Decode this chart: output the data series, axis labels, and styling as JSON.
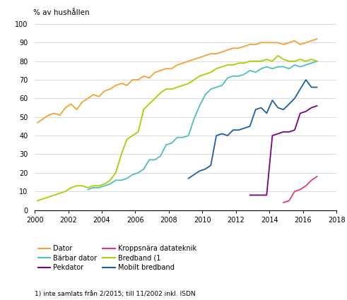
{
  "ylabel": "% av hushållen",
  "footnote": "1) inte samlats från 2/2015; till 11/2002 inkl. ISDN",
  "xlim": [
    2000,
    2018
  ],
  "ylim": [
    0,
    100
  ],
  "xticks": [
    2000,
    2002,
    2004,
    2006,
    2008,
    2010,
    2012,
    2014,
    2016,
    2018
  ],
  "yticks": [
    0,
    10,
    20,
    30,
    40,
    50,
    60,
    70,
    80,
    90,
    100
  ],
  "series": [
    {
      "name": "Dator",
      "color": "#F5A033",
      "x": [
        2000.17,
        2000.5,
        2000.83,
        2001.17,
        2001.5,
        2001.83,
        2002.17,
        2002.5,
        2002.83,
        2003.17,
        2003.5,
        2003.83,
        2004.17,
        2004.5,
        2004.83,
        2005.17,
        2005.5,
        2005.83,
        2006.17,
        2006.5,
        2006.83,
        2007.17,
        2007.5,
        2007.83,
        2008.17,
        2008.5,
        2008.83,
        2009.17,
        2009.5,
        2009.83,
        2010.17,
        2010.5,
        2010.83,
        2011.17,
        2011.5,
        2011.83,
        2012.17,
        2012.5,
        2012.83,
        2013.17,
        2013.5,
        2013.83,
        2014.17,
        2014.5,
        2014.83,
        2015.17,
        2015.5,
        2015.83,
        2016.17,
        2016.5,
        2016.83
      ],
      "y": [
        47,
        49,
        51,
        52,
        51,
        55,
        57,
        54,
        58,
        60,
        62,
        61,
        64,
        65,
        67,
        68,
        67,
        70,
        70,
        72,
        71,
        74,
        75,
        76,
        76,
        78,
        79,
        80,
        81,
        82,
        83,
        84,
        84,
        85,
        86,
        87,
        87,
        88,
        89,
        89,
        90,
        90,
        90,
        90,
        89,
        90,
        91,
        89,
        90,
        91,
        92
      ]
    },
    {
      "name": "Bärbar dator",
      "color": "#4BBFBF",
      "x": [
        2003.17,
        2003.5,
        2003.83,
        2004.17,
        2004.5,
        2004.83,
        2005.17,
        2005.5,
        2005.83,
        2006.17,
        2006.5,
        2006.83,
        2007.17,
        2007.5,
        2007.83,
        2008.17,
        2008.5,
        2008.83,
        2009.17,
        2009.5,
        2009.83,
        2010.17,
        2010.5,
        2010.83,
        2011.17,
        2011.5,
        2011.83,
        2012.17,
        2012.5,
        2012.83,
        2013.17,
        2013.5,
        2013.83,
        2014.17,
        2014.5,
        2014.83,
        2015.17,
        2015.5,
        2015.83,
        2016.17,
        2016.5,
        2016.83
      ],
      "y": [
        11,
        12,
        12,
        13,
        14,
        16,
        16,
        17,
        19,
        20,
        22,
        27,
        27,
        29,
        35,
        36,
        39,
        39,
        40,
        49,
        56,
        62,
        65,
        66,
        67,
        71,
        72,
        72,
        73,
        75,
        74,
        76,
        77,
        76,
        77,
        77,
        76,
        78,
        77,
        78,
        79,
        80
      ]
    },
    {
      "name": "Pekdator",
      "color": "#7B0080",
      "x": [
        2012.83,
        2013.17,
        2013.5,
        2013.83,
        2014.17,
        2014.5,
        2014.83,
        2015.17,
        2015.5,
        2015.83,
        2016.17,
        2016.5,
        2016.83
      ],
      "y": [
        8,
        8,
        8,
        8,
        40,
        41,
        42,
        42,
        43,
        52,
        53,
        55,
        56
      ]
    },
    {
      "name": "Kroppsnära datateknik",
      "color": "#E8347A",
      "x": [
        2014.83,
        2015.17,
        2015.5,
        2015.83,
        2016.17,
        2016.5,
        2016.83
      ],
      "y": [
        4,
        5,
        10,
        11,
        13,
        16,
        18
      ]
    },
    {
      "name": "Bredband (1",
      "color": "#AACC00",
      "x": [
        2000.17,
        2000.5,
        2000.83,
        2001.17,
        2001.5,
        2001.83,
        2002.17,
        2002.5,
        2002.83,
        2003.17,
        2003.5,
        2003.83,
        2004.17,
        2004.5,
        2004.83,
        2005.17,
        2005.5,
        2005.83,
        2006.17,
        2006.5,
        2006.83,
        2007.17,
        2007.5,
        2007.83,
        2008.17,
        2008.5,
        2008.83,
        2009.17,
        2009.5,
        2009.83,
        2010.17,
        2010.5,
        2010.83,
        2011.17,
        2011.5,
        2011.83,
        2012.17,
        2012.5,
        2012.83,
        2013.17,
        2013.5,
        2013.83,
        2014.17,
        2014.5,
        2014.83,
        2015.17,
        2015.5,
        2015.83,
        2016.17,
        2016.5,
        2016.83
      ],
      "y": [
        5,
        6,
        7,
        8,
        9,
        10,
        12,
        13,
        13,
        12,
        13,
        13,
        14,
        16,
        20,
        30,
        38,
        40,
        42,
        54,
        57,
        60,
        63,
        65,
        65,
        66,
        67,
        68,
        70,
        72,
        73,
        74,
        76,
        77,
        78,
        78,
        79,
        79,
        80,
        80,
        80,
        81,
        80,
        83,
        81,
        80,
        80,
        81,
        80,
        81,
        80
      ]
    },
    {
      "name": "Mobilt bredband",
      "color": "#1B5EA6",
      "x": [
        2009.17,
        2009.5,
        2009.83,
        2010.17,
        2010.5,
        2010.83,
        2011.17,
        2011.5,
        2011.83,
        2012.17,
        2012.5,
        2012.83,
        2013.17,
        2013.5,
        2013.83,
        2014.17,
        2014.5,
        2014.83,
        2015.17,
        2015.5,
        2015.83,
        2016.17,
        2016.5,
        2016.83
      ],
      "y": [
        17,
        19,
        21,
        22,
        24,
        40,
        41,
        40,
        43,
        43,
        44,
        45,
        54,
        55,
        52,
        59,
        55,
        54,
        57,
        60,
        65,
        70,
        66,
        66
      ]
    }
  ],
  "legend_order": [
    {
      "label": "Dator",
      "color": "#F5A033"
    },
    {
      "label": "Bärbar dator",
      "color": "#4BBFBF"
    },
    {
      "label": "Pekdator",
      "color": "#7B0080"
    },
    {
      "label": "Kroppsnära datateknik",
      "color": "#E8347A"
    },
    {
      "label": "Bredband (1",
      "color": "#AACC00"
    },
    {
      "label": "Mobilt bredband",
      "color": "#1B5EA6"
    }
  ]
}
